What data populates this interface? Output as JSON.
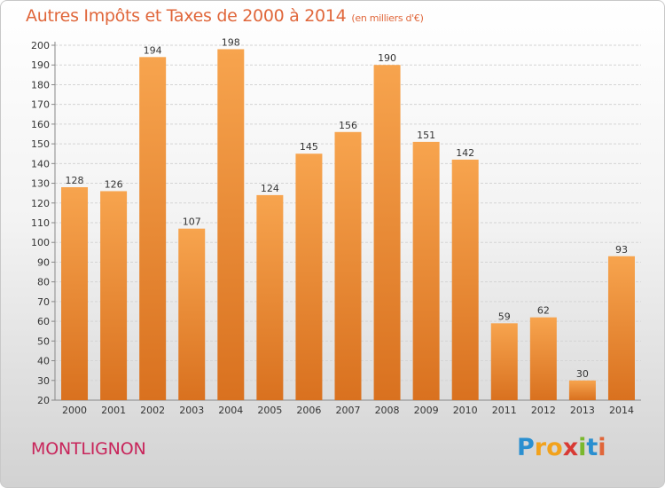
{
  "title": "Autres Impôts et Taxes de 2000 à 2014",
  "subtitle": "(en milliers d'€)",
  "town": "MONTLIGNON",
  "logo": {
    "letters": [
      "P",
      "r",
      "o",
      "x",
      "i",
      "t",
      "i"
    ],
    "colors": [
      "#2a8fd0",
      "#f2a21c",
      "#f2a21c",
      "#d83a34",
      "#7ab82e",
      "#2a8fd0",
      "#e0663a"
    ]
  },
  "colors": {
    "bar_light": "#f7a44e",
    "bar_dark": "#d9711f",
    "grid": "#d4d4d4",
    "axis_text": "#333333"
  },
  "chart_data": {
    "type": "bar",
    "title": "Autres Impôts et Taxes de 2000 à 2014",
    "subtitle": "(en milliers d'€)",
    "categories": [
      "2000",
      "2001",
      "2002",
      "2003",
      "2004",
      "2005",
      "2006",
      "2007",
      "2008",
      "2009",
      "2010",
      "2011",
      "2012",
      "2013",
      "2014"
    ],
    "values": [
      128,
      126,
      194,
      107,
      198,
      124,
      145,
      156,
      190,
      151,
      142,
      59,
      62,
      30,
      93
    ],
    "ylim": [
      20,
      200
    ],
    "yticks": [
      20,
      30,
      40,
      50,
      60,
      70,
      80,
      90,
      100,
      110,
      120,
      130,
      140,
      150,
      160,
      170,
      180,
      190,
      200
    ],
    "grid": true,
    "data_labels": true
  }
}
